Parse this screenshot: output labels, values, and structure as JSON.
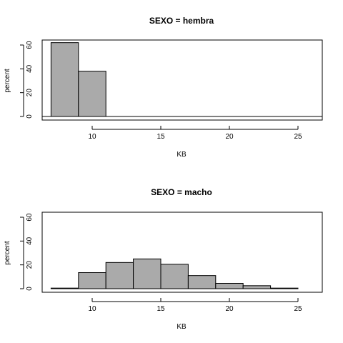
{
  "chart_data": [
    {
      "type": "bar",
      "title": "SEXO = hembra",
      "xlabel": "KB",
      "ylabel": "percent",
      "xlim": [
        6,
        27
      ],
      "ylim": [
        0,
        65
      ],
      "xticks": [
        10,
        15,
        20,
        25
      ],
      "yticks": [
        0,
        20,
        40,
        60
      ],
      "bins": [
        {
          "x0": 7,
          "x1": 9,
          "value": 62
        },
        {
          "x0": 9,
          "x1": 11,
          "value": 38
        }
      ]
    },
    {
      "type": "bar",
      "title": "SEXO = macho",
      "xlabel": "KB",
      "ylabel": "percent",
      "xlim": [
        6,
        27
      ],
      "ylim": [
        0,
        65
      ],
      "xticks": [
        10,
        15,
        20,
        25
      ],
      "yticks": [
        0,
        20,
        40,
        60
      ],
      "bins": [
        {
          "x0": 7,
          "x1": 9,
          "value": 0.5
        },
        {
          "x0": 9,
          "x1": 11,
          "value": 13.5
        },
        {
          "x0": 11,
          "x1": 13,
          "value": 22
        },
        {
          "x0": 13,
          "x1": 15,
          "value": 25
        },
        {
          "x0": 15,
          "x1": 17,
          "value": 20.5
        },
        {
          "x0": 17,
          "x1": 19,
          "value": 11
        },
        {
          "x0": 19,
          "x1": 21,
          "value": 4.5
        },
        {
          "x0": 21,
          "x1": 23,
          "value": 2.5
        },
        {
          "x0": 23,
          "x1": 25,
          "value": 0.5
        }
      ]
    }
  ]
}
